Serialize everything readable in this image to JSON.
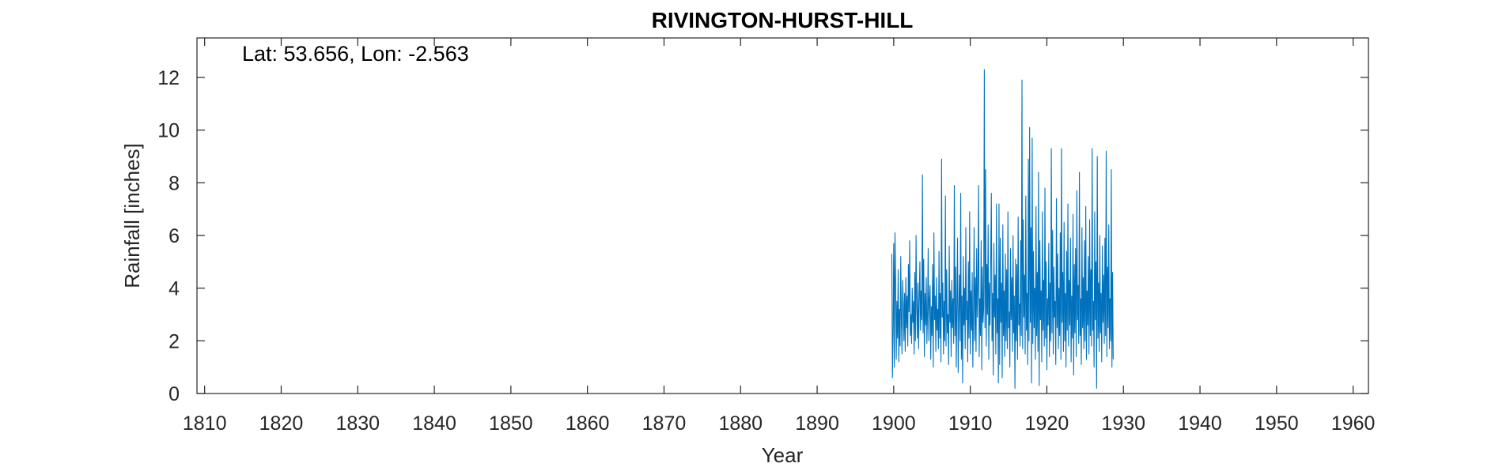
{
  "chart_data": {
    "type": "line",
    "title": "RIVINGTON-HURST-HILL",
    "annotation": "Lat: 53.656, Lon: -2.563",
    "xlabel": "Year",
    "ylabel": "Rainfall [inches]",
    "xlim": [
      1809,
      1962
    ],
    "ylim": [
      0,
      13.5
    ],
    "xticks": [
      1810,
      1820,
      1830,
      1840,
      1850,
      1860,
      1870,
      1880,
      1890,
      1900,
      1910,
      1920,
      1930,
      1940,
      1950,
      1960
    ],
    "yticks": [
      0,
      2,
      4,
      6,
      8,
      10,
      12
    ],
    "grid": false,
    "series_color": "#0072BD",
    "series": [
      {
        "start_year": 1899.75,
        "step_years": 0.0833333,
        "values": [
          5.3,
          0.6,
          2.2,
          5.7,
          1.0,
          6.1,
          4.2,
          1.3,
          3.5,
          2.1,
          4.7,
          1.2,
          3.2,
          1.8,
          5.2,
          2.7,
          1.5,
          4.3,
          3.4,
          2.0,
          3.8,
          1.6,
          4.4,
          2.5,
          3.7,
          1.8,
          4.9,
          3.1,
          5.8,
          2.2,
          3.0,
          1.9,
          4.0,
          2.7,
          3.5,
          1.5,
          4.6,
          2.0,
          6.0,
          3.3,
          2.1,
          4.2,
          1.7,
          3.6,
          5.0,
          2.4,
          3.9,
          2.8,
          8.3,
          2.3,
          5.1,
          1.4,
          3.8,
          2.6,
          4.4,
          1.9,
          3.1,
          5.5,
          2.0,
          3.6,
          4.1,
          1.3,
          3.3,
          2.2,
          4.9,
          1.0,
          6.1,
          2.8,
          3.7,
          1.6,
          4.4,
          2.4,
          3.2,
          1.7,
          5.4,
          2.1,
          3.8,
          1.2,
          8.9,
          2.9,
          4.2,
          1.5,
          3.5,
          2.0,
          7.5,
          1.8,
          4.7,
          2.3,
          3.0,
          1.1,
          5.6,
          2.7,
          3.9,
          1.4,
          4.3,
          2.5,
          3.6,
          1.9,
          7.9,
          2.2,
          4.8,
          1.0,
          3.4,
          5.9,
          0.8,
          3.1,
          4.5,
          2.0,
          7.6,
          1.3,
          3.7,
          0.4,
          5.2,
          2.6,
          4.0,
          1.7,
          6.3,
          2.8,
          3.5,
          1.2,
          5.0,
          2.1,
          6.9,
          1.5,
          3.9,
          2.4,
          4.6,
          1.0,
          3.2,
          6.3,
          2.0,
          4.4,
          1.6,
          5.5,
          2.9,
          4.1,
          7.9,
          1.4,
          3.6,
          2.2,
          5.8,
          0.9,
          4.8,
          2.7,
          3.3,
          12.3,
          2.5,
          8.5,
          1.8,
          4.9,
          3.0,
          6.4,
          1.3,
          4.2,
          2.6,
          5.1,
          7.6,
          2.0,
          3.8,
          0.7,
          5.7,
          2.9,
          4.5,
          1.5,
          7.2,
          2.3,
          3.6,
          0.4,
          7.2,
          1.1,
          5.9,
          2.7,
          4.2,
          0.6,
          6.4,
          2.2,
          3.9,
          1.4,
          5.3,
          2.0,
          4.7,
          1.7,
          6.9,
          2.5,
          3.1,
          1.0,
          5.5,
          2.8,
          4.4,
          1.6,
          6.0,
          2.3,
          3.7,
          0.2,
          5.1,
          2.0,
          4.9,
          1.3,
          6.7,
          2.6,
          3.4,
          1.8,
          5.8,
          2.2,
          11.9,
          1.7,
          6.6,
          2.9,
          4.5,
          1.5,
          7.5,
          2.4,
          3.8,
          1.1,
          8.9,
          2.0,
          10.1,
          2.7,
          6.3,
          0.4,
          9.7,
          1.9,
          5.4,
          2.5,
          4.0,
          1.3,
          7.1,
          2.2,
          4.6,
          1.6,
          8.4,
          0.3,
          5.8,
          2.8,
          3.9,
          1.2,
          6.9,
          2.4,
          4.3,
          1.8,
          7.8,
          2.1,
          5.0,
          0.9,
          3.6,
          2.6,
          5.7,
          1.4,
          4.2,
          2.0,
          9.3,
          2.3,
          6.2,
          1.5,
          4.8,
          2.9,
          3.5,
          1.1,
          7.4,
          2.5,
          5.3,
          1.7,
          4.0,
          2.2,
          6.1,
          1.3,
          9.3,
          2.7,
          4.6,
          1.6,
          6.5,
          2.0,
          3.8,
          1.0,
          5.4,
          2.4,
          7.2,
          1.8,
          4.3,
          2.6,
          5.9,
          1.2,
          3.7,
          2.1,
          6.8,
          0.7,
          4.9,
          2.3,
          5.5,
          1.4,
          7.7,
          2.8,
          4.1,
          1.9,
          8.4,
          2.2,
          3.6,
          1.1,
          6.3,
          2.5,
          4.4,
          1.7,
          5.8,
          2.0,
          7.1,
          1.3,
          3.9,
          2.6,
          5.2,
          1.5,
          6.6,
          2.2,
          4.7,
          1.8,
          9.3,
          2.4,
          3.5,
          1.0,
          6.9,
          2.8,
          5.0,
          0.2,
          9.0,
          2.1,
          4.2,
          1.6,
          6.0,
          2.3,
          3.8,
          1.2,
          5.6,
          2.7,
          4.5,
          1.9,
          5.9,
          2.2,
          9.2,
          1.4,
          4.8,
          2.5,
          6.4,
          1.7,
          3.6,
          2.0,
          8.5,
          1.0,
          4.6,
          1.3
        ]
      }
    ]
  }
}
